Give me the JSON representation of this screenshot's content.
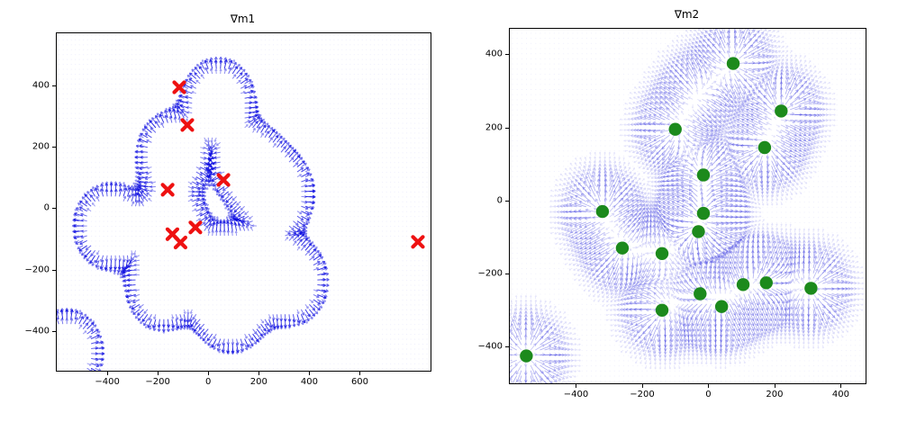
{
  "figure": {
    "background": "#ffffff"
  },
  "chart_data": [
    {
      "type": "quiver",
      "title": "∇m1",
      "xlim": [
        -600,
        880
      ],
      "ylim": [
        -530,
        570
      ],
      "xticks": [
        -400,
        -200,
        0,
        200,
        400,
        600
      ],
      "yticks": [
        -400,
        -200,
        0,
        200,
        400
      ],
      "grid": false,
      "legend": "none",
      "arrow_color": "#0a0ae0",
      "field_style": "ring",
      "sigma": 80,
      "band": [
        0.25,
        0.55
      ],
      "grid_step": 16,
      "marker_style": {
        "shape": "X",
        "color": "#ee1111",
        "size": 5.5
      },
      "markers": [
        [
          -115,
          394
        ],
        [
          -83,
          271
        ],
        [
          -161,
          60
        ],
        [
          60,
          92
        ],
        [
          -51,
          -63
        ],
        [
          -142,
          -85
        ],
        [
          -110,
          -112
        ],
        [
          830,
          -110
        ]
      ],
      "field_centers": [
        [
          40,
          350
        ],
        [
          -140,
          175
        ],
        [
          160,
          140
        ],
        [
          275,
          45
        ],
        [
          -390,
          -60
        ],
        [
          -150,
          -60
        ],
        [
          -180,
          -260
        ],
        [
          30,
          -205
        ],
        [
          180,
          -200
        ],
        [
          330,
          -240
        ],
        [
          90,
          -330
        ],
        [
          -560,
          -470
        ]
      ]
    },
    {
      "type": "quiver",
      "title": "∇m2",
      "xlim": [
        -600,
        475
      ],
      "ylim": [
        -500,
        470
      ],
      "xticks": [
        -400,
        -200,
        0,
        200,
        400
      ],
      "yticks": [
        -400,
        -200,
        0,
        200,
        400
      ],
      "grid": false,
      "legend": "none",
      "arrow_color": "#2828dc",
      "field_style": "starburst",
      "sigma": 55,
      "grid_step": 14,
      "marker_style": {
        "shape": "circle",
        "color": "#1c8a1c",
        "size": 7.2
      },
      "markers": [
        [
          75,
          375
        ],
        [
          220,
          245
        ],
        [
          -100,
          195
        ],
        [
          170,
          145
        ],
        [
          -15,
          70
        ],
        [
          -15,
          -35
        ],
        [
          -30,
          -85
        ],
        [
          -320,
          -30
        ],
        [
          -260,
          -130
        ],
        [
          -140,
          -145
        ],
        [
          -140,
          -300
        ],
        [
          -25,
          -255
        ],
        [
          40,
          -290
        ],
        [
          105,
          -230
        ],
        [
          175,
          -225
        ],
        [
          310,
          -240
        ],
        [
          -550,
          -425
        ]
      ],
      "field_centers": [
        [
          75,
          375
        ],
        [
          220,
          245
        ],
        [
          -100,
          195
        ],
        [
          170,
          145
        ],
        [
          -15,
          70
        ],
        [
          -15,
          -35
        ],
        [
          -30,
          -85
        ],
        [
          -320,
          -30
        ],
        [
          -260,
          -130
        ],
        [
          -140,
          -145
        ],
        [
          -140,
          -300
        ],
        [
          -25,
          -255
        ],
        [
          40,
          -290
        ],
        [
          105,
          -230
        ],
        [
          175,
          -225
        ],
        [
          310,
          -240
        ],
        [
          -550,
          -425
        ],
        [
          -30,
          290
        ]
      ]
    }
  ]
}
